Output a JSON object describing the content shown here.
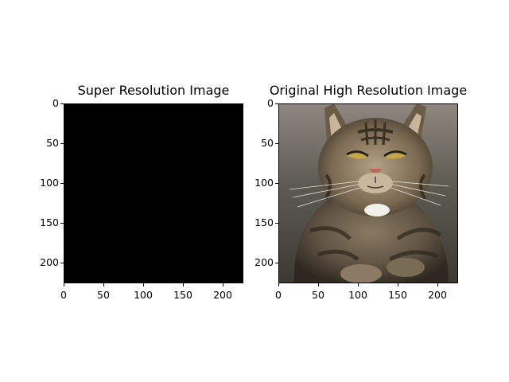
{
  "panels": [
    {
      "title": "Super Resolution Image",
      "image": "black image",
      "xticks": [
        "0",
        "50",
        "100",
        "150",
        "200"
      ],
      "yticks": [
        "0",
        "50",
        "100",
        "150",
        "200"
      ]
    },
    {
      "title": "Original High Resolution Image",
      "image": "tabby cat photo",
      "xticks": [
        "0",
        "50",
        "100",
        "150",
        "200"
      ],
      "yticks": [
        "0",
        "50",
        "100",
        "150",
        "200"
      ]
    }
  ],
  "colors": {
    "background": "#ffffff",
    "axis": "#000000",
    "super_resolution_fill": "#000000"
  }
}
